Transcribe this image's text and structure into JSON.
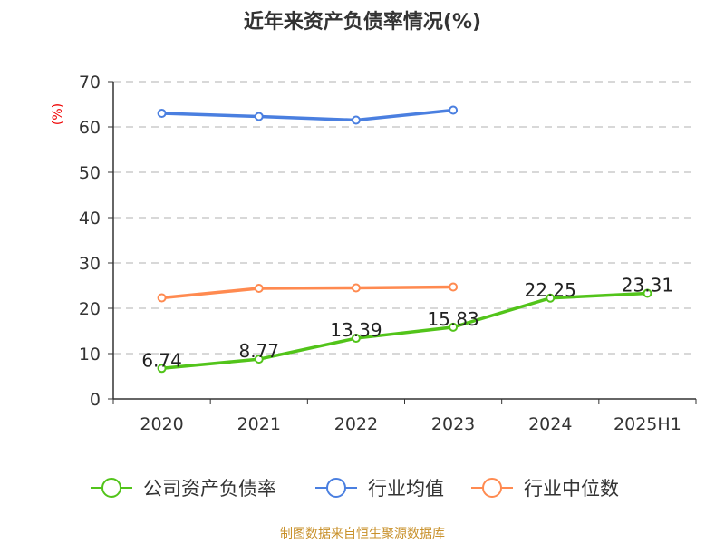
{
  "title": "近年来资产负债率情况(%)",
  "footer": "制图数据来自恒生聚源数据库",
  "chart_data": {
    "type": "line",
    "title": "近年来资产负债率情况(%)",
    "ylabel": "(%)",
    "ylim": [
      0,
      70
    ],
    "yticks": [
      0,
      10,
      20,
      30,
      40,
      50,
      60,
      70
    ],
    "categories": [
      "2020",
      "2021",
      "2022",
      "2023",
      "2024",
      "2025H1"
    ],
    "grid": true,
    "legend_position": "bottom",
    "series": [
      {
        "name": "公司资产负债率",
        "color": "#52c41a",
        "values": [
          6.74,
          8.77,
          13.39,
          15.83,
          22.25,
          23.31
        ],
        "labels": [
          "6.74",
          "8.77",
          "13.39",
          "15.83",
          "22.25",
          "23.31"
        ]
      },
      {
        "name": "行业均值",
        "color": "#4a7fe0",
        "values": [
          63.0,
          62.3,
          61.5,
          63.7,
          null,
          null
        ]
      },
      {
        "name": "行业中位数",
        "color": "#ff8a50",
        "values": [
          22.3,
          24.4,
          24.5,
          24.7,
          null,
          null
        ]
      }
    ]
  }
}
